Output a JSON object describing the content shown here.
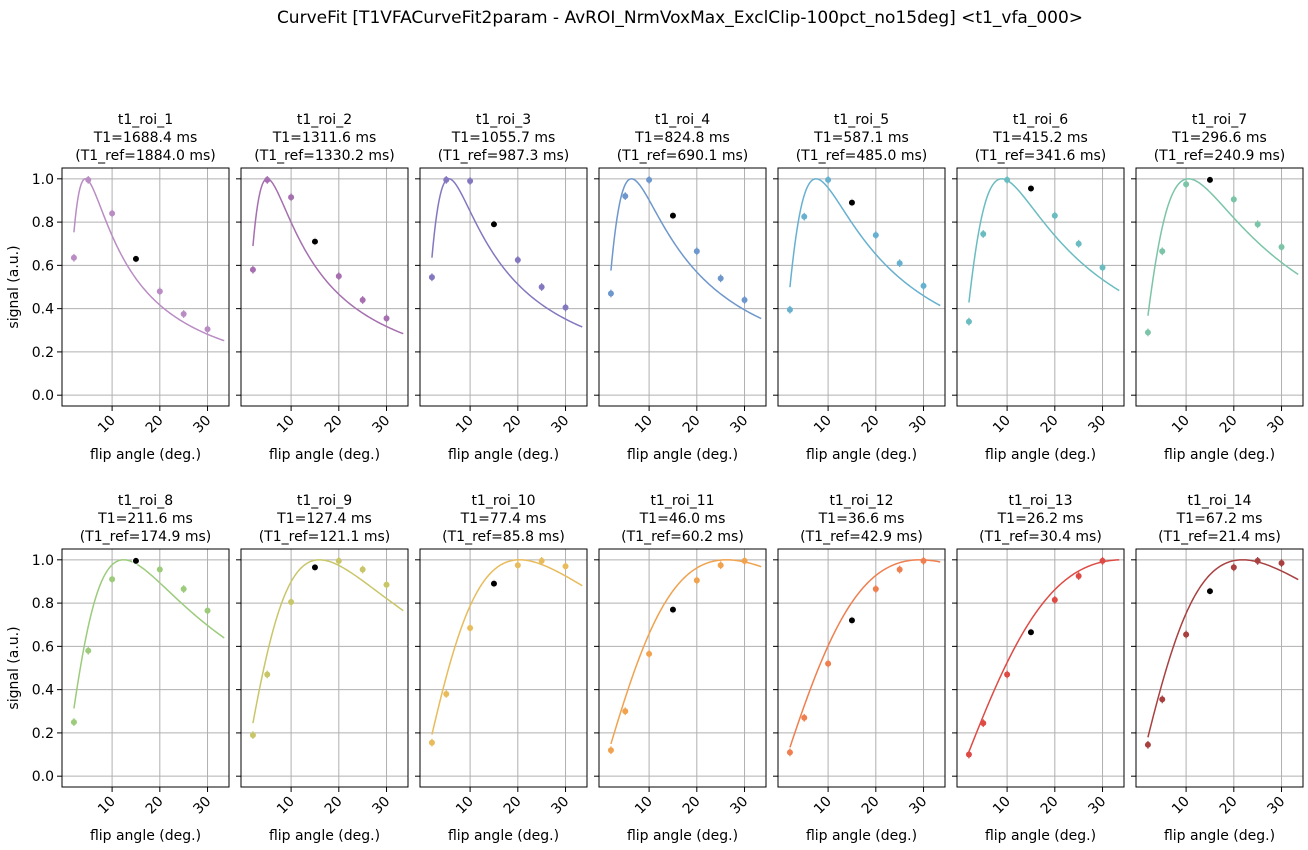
{
  "figure": {
    "title": "CurveFit [T1VFACurveFit2param - AvROI_NrmVoxMax_ExclClip-100pct_no15deg] <t1_vfa_000>"
  },
  "chart_data": [
    {
      "type": "line",
      "title": "t1_roi_1",
      "t1_label": "T1=1688.4 ms",
      "ref_label": "(T1_ref=1884.0 ms)",
      "t1": 1688.4,
      "t1_ref": 1884.0,
      "color": "#b98dc4",
      "x": [
        2,
        5,
        10,
        15,
        20,
        25,
        30
      ],
      "y": [
        0.635,
        0.995,
        0.84,
        0.63,
        0.48,
        0.375,
        0.305
      ],
      "excluded_x": 15,
      "xlabel": "flip angle (deg.)",
      "ylabel": "signal (a.u.)",
      "xticks": [
        10,
        20,
        30
      ],
      "yticks": [
        0.0,
        0.2,
        0.4,
        0.6,
        0.8,
        1.0
      ],
      "ylim": [
        -0.05,
        1.05
      ]
    },
    {
      "type": "line",
      "title": "t1_roi_2",
      "t1_label": "T1=1311.6 ms",
      "ref_label": "(T1_ref=1330.2 ms)",
      "t1": 1311.6,
      "t1_ref": 1330.2,
      "color": "#a66fb0",
      "x": [
        2,
        5,
        10,
        15,
        20,
        25,
        30
      ],
      "y": [
        0.58,
        0.995,
        0.915,
        0.71,
        0.55,
        0.44,
        0.355
      ],
      "excluded_x": 15,
      "xlabel": "flip angle (deg.)",
      "ylabel": "signal (a.u.)",
      "xticks": [
        10,
        20,
        30
      ],
      "yticks": [
        0.0,
        0.2,
        0.4,
        0.6,
        0.8,
        1.0
      ],
      "ylim": [
        -0.05,
        1.05
      ]
    },
    {
      "type": "line",
      "title": "t1_roi_3",
      "t1_label": "T1=1055.7 ms",
      "ref_label": "(T1_ref=987.3 ms)",
      "t1": 1055.7,
      "t1_ref": 987.3,
      "color": "#8477c0",
      "x": [
        2,
        5,
        10,
        15,
        20,
        25,
        30
      ],
      "y": [
        0.545,
        0.995,
        0.99,
        0.79,
        0.625,
        0.5,
        0.405
      ],
      "excluded_x": 15,
      "xlabel": "flip angle (deg.)",
      "ylabel": "signal (a.u.)",
      "xticks": [
        10,
        20,
        30
      ],
      "yticks": [
        0.0,
        0.2,
        0.4,
        0.6,
        0.8,
        1.0
      ],
      "ylim": [
        -0.05,
        1.05
      ]
    },
    {
      "type": "line",
      "title": "t1_roi_4",
      "t1_label": "T1=824.8 ms",
      "ref_label": "(T1_ref=690.1 ms)",
      "t1": 824.8,
      "t1_ref": 690.1,
      "color": "#6e97cc",
      "x": [
        2,
        5,
        10,
        15,
        20,
        25,
        30
      ],
      "y": [
        0.47,
        0.92,
        0.995,
        0.83,
        0.665,
        0.54,
        0.44
      ],
      "excluded_x": 15,
      "xlabel": "flip angle (deg.)",
      "ylabel": "signal (a.u.)",
      "xticks": [
        10,
        20,
        30
      ],
      "yticks": [
        0.0,
        0.2,
        0.4,
        0.6,
        0.8,
        1.0
      ],
      "ylim": [
        -0.05,
        1.05
      ]
    },
    {
      "type": "line",
      "title": "t1_roi_5",
      "t1_label": "T1=587.1 ms",
      "ref_label": "(T1_ref=485.0 ms)",
      "t1": 587.1,
      "t1_ref": 485.0,
      "color": "#67b0d0",
      "x": [
        2,
        5,
        10,
        15,
        20,
        25,
        30
      ],
      "y": [
        0.395,
        0.825,
        0.995,
        0.89,
        0.74,
        0.61,
        0.505
      ],
      "excluded_x": 15,
      "xlabel": "flip angle (deg.)",
      "ylabel": "signal (a.u.)",
      "xticks": [
        10,
        20,
        30
      ],
      "yticks": [
        0.0,
        0.2,
        0.4,
        0.6,
        0.8,
        1.0
      ],
      "ylim": [
        -0.05,
        1.05
      ]
    },
    {
      "type": "line",
      "title": "t1_roi_6",
      "t1_label": "T1=415.2 ms",
      "ref_label": "(T1_ref=341.6 ms)",
      "t1": 415.2,
      "t1_ref": 341.6,
      "color": "#6bbcc0",
      "x": [
        2,
        5,
        10,
        15,
        20,
        25,
        30
      ],
      "y": [
        0.34,
        0.745,
        0.995,
        0.955,
        0.83,
        0.7,
        0.59
      ],
      "excluded_x": 15,
      "xlabel": "flip angle (deg.)",
      "ylabel": "signal (a.u.)",
      "xticks": [
        10,
        20,
        30
      ],
      "yticks": [
        0.0,
        0.2,
        0.4,
        0.6,
        0.8,
        1.0
      ],
      "ylim": [
        -0.05,
        1.05
      ]
    },
    {
      "type": "line",
      "title": "t1_roi_7",
      "t1_label": "T1=296.6 ms",
      "ref_label": "(T1_ref=240.9 ms)",
      "t1": 296.6,
      "t1_ref": 240.9,
      "color": "#7cc4a8",
      "x": [
        2,
        5,
        10,
        15,
        20,
        25,
        30
      ],
      "y": [
        0.29,
        0.665,
        0.975,
        0.995,
        0.905,
        0.79,
        0.685
      ],
      "excluded_x": 15,
      "xlabel": "flip angle (deg.)",
      "ylabel": "signal (a.u.)",
      "xticks": [
        10,
        20,
        30
      ],
      "yticks": [
        0.0,
        0.2,
        0.4,
        0.6,
        0.8,
        1.0
      ],
      "ylim": [
        -0.05,
        1.05
      ]
    },
    {
      "type": "line",
      "title": "t1_roi_8",
      "t1_label": "T1=211.6 ms",
      "ref_label": "(T1_ref=174.9 ms)",
      "t1": 211.6,
      "t1_ref": 174.9,
      "color": "#9ccb7c",
      "x": [
        2,
        5,
        10,
        15,
        20,
        25,
        30
      ],
      "y": [
        0.25,
        0.58,
        0.91,
        0.995,
        0.955,
        0.865,
        0.765
      ],
      "excluded_x": 15,
      "xlabel": "flip angle (deg.)",
      "ylabel": "signal (a.u.)",
      "xticks": [
        10,
        20,
        30
      ],
      "yticks": [
        0.0,
        0.2,
        0.4,
        0.6,
        0.8,
        1.0
      ],
      "ylim": [
        -0.05,
        1.05
      ]
    },
    {
      "type": "line",
      "title": "t1_roi_9",
      "t1_label": "T1=127.4 ms",
      "ref_label": "(T1_ref=121.1 ms)",
      "t1": 127.4,
      "t1_ref": 121.1,
      "color": "#c9c66a",
      "x": [
        2,
        5,
        10,
        15,
        20,
        25,
        30
      ],
      "y": [
        0.19,
        0.47,
        0.805,
        0.965,
        0.995,
        0.955,
        0.885
      ],
      "excluded_x": 15,
      "xlabel": "flip angle (deg.)",
      "ylabel": "signal (a.u.)",
      "xticks": [
        10,
        20,
        30
      ],
      "yticks": [
        0.0,
        0.2,
        0.4,
        0.6,
        0.8,
        1.0
      ],
      "ylim": [
        -0.05,
        1.05
      ]
    },
    {
      "type": "line",
      "title": "t1_roi_10",
      "t1_label": "T1=77.4 ms",
      "ref_label": "(T1_ref=85.8 ms)",
      "t1": 77.4,
      "t1_ref": 85.8,
      "color": "#e8bb5c",
      "x": [
        2,
        5,
        10,
        15,
        20,
        25,
        30
      ],
      "y": [
        0.155,
        0.38,
        0.685,
        0.89,
        0.975,
        0.995,
        0.97
      ],
      "excluded_x": 15,
      "xlabel": "flip angle (deg.)",
      "ylabel": "signal (a.u.)",
      "xticks": [
        10,
        20,
        30
      ],
      "yticks": [
        0.0,
        0.2,
        0.4,
        0.6,
        0.8,
        1.0
      ],
      "ylim": [
        -0.05,
        1.05
      ]
    },
    {
      "type": "line",
      "title": "t1_roi_11",
      "t1_label": "T1=46.0 ms",
      "ref_label": "(T1_ref=60.2 ms)",
      "t1": 46.0,
      "t1_ref": 60.2,
      "color": "#f0a24f",
      "x": [
        2,
        5,
        10,
        15,
        20,
        25,
        30
      ],
      "y": [
        0.12,
        0.3,
        0.565,
        0.77,
        0.905,
        0.975,
        0.995
      ],
      "excluded_x": 15,
      "xlabel": "flip angle (deg.)",
      "ylabel": "signal (a.u.)",
      "xticks": [
        10,
        20,
        30
      ],
      "yticks": [
        0.0,
        0.2,
        0.4,
        0.6,
        0.8,
        1.0
      ],
      "ylim": [
        -0.05,
        1.05
      ]
    },
    {
      "type": "line",
      "title": "t1_roi_12",
      "t1_label": "T1=36.6 ms",
      "ref_label": "(T1_ref=42.9 ms)",
      "t1": 36.6,
      "t1_ref": 42.9,
      "color": "#ef7f4f",
      "x": [
        2,
        5,
        10,
        15,
        20,
        25,
        30
      ],
      "y": [
        0.11,
        0.27,
        0.52,
        0.72,
        0.865,
        0.955,
        0.995
      ],
      "excluded_x": 15,
      "xlabel": "flip angle (deg.)",
      "ylabel": "signal (a.u.)",
      "xticks": [
        10,
        20,
        30
      ],
      "yticks": [
        0.0,
        0.2,
        0.4,
        0.6,
        0.8,
        1.0
      ],
      "ylim": [
        -0.05,
        1.05
      ]
    },
    {
      "type": "line",
      "title": "t1_roi_13",
      "t1_label": "T1=26.2 ms",
      "ref_label": "(T1_ref=30.4 ms)",
      "t1": 26.2,
      "t1_ref": 30.4,
      "color": "#de4b45",
      "x": [
        2,
        5,
        10,
        15,
        20,
        25,
        30
      ],
      "y": [
        0.1,
        0.245,
        0.47,
        0.665,
        0.815,
        0.925,
        0.995
      ],
      "excluded_x": 15,
      "xlabel": "flip angle (deg.)",
      "ylabel": "signal (a.u.)",
      "xticks": [
        10,
        20,
        30
      ],
      "yticks": [
        0.0,
        0.2,
        0.4,
        0.6,
        0.8,
        1.0
      ],
      "ylim": [
        -0.05,
        1.05
      ]
    },
    {
      "type": "line",
      "title": "t1_roi_14",
      "t1_label": "T1=67.2 ms",
      "ref_label": "(T1_ref=21.4 ms)",
      "t1": 67.2,
      "t1_ref": 21.4,
      "color": "#a84040",
      "x": [
        2,
        5,
        10,
        15,
        20,
        25,
        30
      ],
      "y": [
        0.145,
        0.355,
        0.655,
        0.855,
        0.965,
        0.995,
        0.985
      ],
      "excluded_x": 15,
      "xlabel": "flip angle (deg.)",
      "ylabel": "signal (a.u.)",
      "xticks": [
        10,
        20,
        30
      ],
      "yticks": [
        0.0,
        0.2,
        0.4,
        0.6,
        0.8,
        1.0
      ],
      "ylim": [
        -0.05,
        1.05
      ]
    }
  ]
}
